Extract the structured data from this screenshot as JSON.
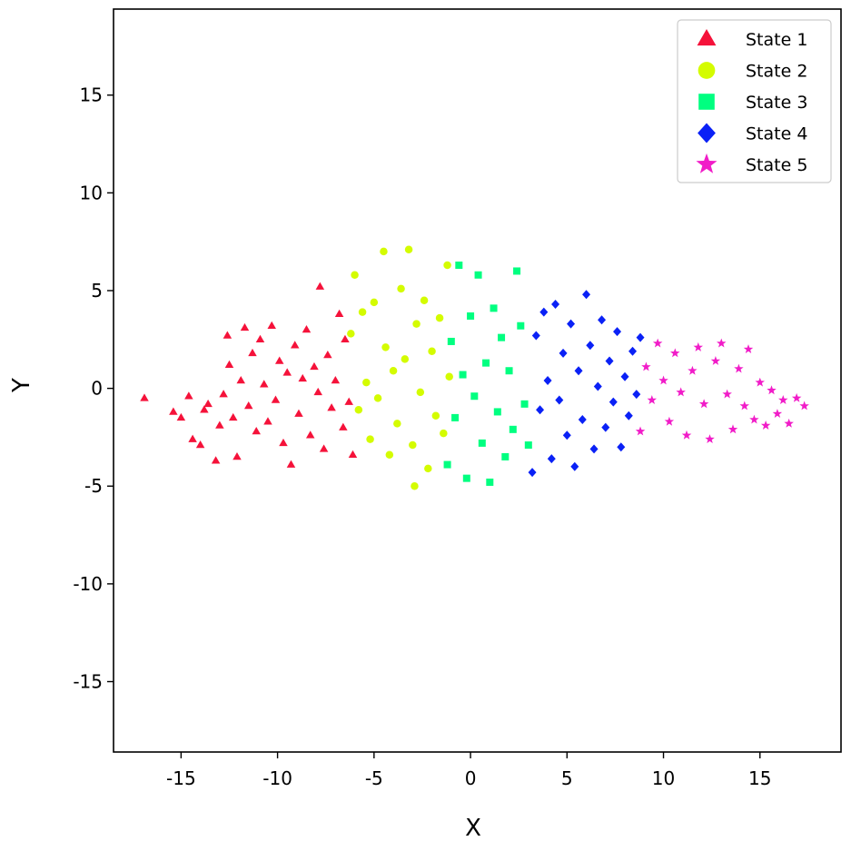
{
  "chart_data": {
    "type": "scatter",
    "xlabel": "X",
    "ylabel": "Y",
    "xlim": [
      -18.5,
      19.2
    ],
    "ylim": [
      -18.6,
      19.4
    ],
    "xticks": [
      -15,
      -10,
      -5,
      0,
      5,
      10,
      15
    ],
    "yticks": [
      -15,
      -10,
      -5,
      0,
      5,
      10,
      15
    ],
    "xtick_labels": [
      "-15",
      "-10",
      "-5",
      "0",
      "5",
      "10",
      "15"
    ],
    "ytick_labels": [
      "-15",
      "-10",
      "-5",
      "0",
      "5",
      "10",
      "15"
    ],
    "grid": false,
    "legend_position": "top-right",
    "series": [
      {
        "name": "State 1",
        "marker": "triangle",
        "color": "#f5123a",
        "points": [
          [
            -16.9,
            -0.5
          ],
          [
            -15.4,
            -1.2
          ],
          [
            -15.0,
            -1.5
          ],
          [
            -14.6,
            -0.4
          ],
          [
            -14.4,
            -2.6
          ],
          [
            -14.0,
            -2.9
          ],
          [
            -13.8,
            -1.1
          ],
          [
            -13.6,
            -0.8
          ],
          [
            -13.2,
            -3.7
          ],
          [
            -13.0,
            -1.9
          ],
          [
            -12.8,
            -0.3
          ],
          [
            -12.6,
            2.7
          ],
          [
            -12.5,
            1.2
          ],
          [
            -12.3,
            -1.5
          ],
          [
            -12.1,
            -3.5
          ],
          [
            -11.9,
            0.4
          ],
          [
            -11.7,
            3.1
          ],
          [
            -11.5,
            -0.9
          ],
          [
            -11.3,
            1.8
          ],
          [
            -11.1,
            -2.2
          ],
          [
            -10.9,
            2.5
          ],
          [
            -10.7,
            0.2
          ],
          [
            -10.5,
            -1.7
          ],
          [
            -10.3,
            3.2
          ],
          [
            -10.1,
            -0.6
          ],
          [
            -9.9,
            1.4
          ],
          [
            -9.7,
            -2.8
          ],
          [
            -9.5,
            0.8
          ],
          [
            -9.3,
            -3.9
          ],
          [
            -9.1,
            2.2
          ],
          [
            -8.9,
            -1.3
          ],
          [
            -8.7,
            0.5
          ],
          [
            -8.5,
            3.0
          ],
          [
            -8.3,
            -2.4
          ],
          [
            -8.1,
            1.1
          ],
          [
            -7.9,
            -0.2
          ],
          [
            -7.8,
            5.2
          ],
          [
            -7.6,
            -3.1
          ],
          [
            -7.4,
            1.7
          ],
          [
            -7.2,
            -1.0
          ],
          [
            -7.0,
            0.4
          ],
          [
            -6.8,
            3.8
          ],
          [
            -6.6,
            -2.0
          ],
          [
            -6.5,
            2.5
          ],
          [
            -6.3,
            -0.7
          ],
          [
            -6.1,
            -3.4
          ]
        ]
      },
      {
        "name": "State 2",
        "marker": "circle",
        "color": "#d4fc00",
        "points": [
          [
            -6.2,
            2.8
          ],
          [
            -6.0,
            5.8
          ],
          [
            -5.8,
            -1.1
          ],
          [
            -5.6,
            3.9
          ],
          [
            -5.4,
            0.3
          ],
          [
            -5.2,
            -2.6
          ],
          [
            -5.0,
            4.4
          ],
          [
            -4.8,
            -0.5
          ],
          [
            -4.5,
            7.0
          ],
          [
            -4.4,
            2.1
          ],
          [
            -4.2,
            -3.4
          ],
          [
            -4.0,
            0.9
          ],
          [
            -3.8,
            -1.8
          ],
          [
            -3.6,
            5.1
          ],
          [
            -3.4,
            1.5
          ],
          [
            -3.2,
            7.1
          ],
          [
            -3.0,
            -2.9
          ],
          [
            -2.9,
            -5.0
          ],
          [
            -2.8,
            3.3
          ],
          [
            -2.6,
            -0.2
          ],
          [
            -2.4,
            4.5
          ],
          [
            -2.2,
            -4.1
          ],
          [
            -2.0,
            1.9
          ],
          [
            -1.8,
            -1.4
          ],
          [
            -1.6,
            3.6
          ],
          [
            -1.4,
            -2.3
          ],
          [
            -1.2,
            6.3
          ],
          [
            -1.1,
            0.6
          ]
        ]
      },
      {
        "name": "State 3",
        "marker": "square",
        "color": "#00ff80",
        "points": [
          [
            -1.2,
            -3.9
          ],
          [
            -1.0,
            2.4
          ],
          [
            -0.8,
            -1.5
          ],
          [
            -0.6,
            6.3
          ],
          [
            -0.4,
            0.7
          ],
          [
            -0.2,
            -4.6
          ],
          [
            0.0,
            3.7
          ],
          [
            0.2,
            -0.4
          ],
          [
            0.4,
            5.8
          ],
          [
            0.6,
            -2.8
          ],
          [
            0.8,
            1.3
          ],
          [
            1.0,
            -4.8
          ],
          [
            1.2,
            4.1
          ],
          [
            1.4,
            -1.2
          ],
          [
            1.6,
            2.6
          ],
          [
            1.8,
            -3.5
          ],
          [
            2.0,
            0.9
          ],
          [
            2.2,
            -2.1
          ],
          [
            2.4,
            6.0
          ],
          [
            2.6,
            3.2
          ],
          [
            2.8,
            -0.8
          ],
          [
            3.0,
            -2.9
          ]
        ]
      },
      {
        "name": "State 4",
        "marker": "diamond",
        "color": "#0a21f6",
        "points": [
          [
            3.2,
            -4.3
          ],
          [
            3.4,
            2.7
          ],
          [
            3.6,
            -1.1
          ],
          [
            3.8,
            3.9
          ],
          [
            4.0,
            0.4
          ],
          [
            4.2,
            -3.6
          ],
          [
            4.4,
            4.3
          ],
          [
            4.6,
            -0.6
          ],
          [
            4.8,
            1.8
          ],
          [
            5.0,
            -2.4
          ],
          [
            5.2,
            3.3
          ],
          [
            5.4,
            -4.0
          ],
          [
            5.6,
            0.9
          ],
          [
            5.8,
            -1.6
          ],
          [
            6.0,
            4.8
          ],
          [
            6.2,
            2.2
          ],
          [
            6.4,
            -3.1
          ],
          [
            6.6,
            0.1
          ],
          [
            6.8,
            3.5
          ],
          [
            7.0,
            -2.0
          ],
          [
            7.2,
            1.4
          ],
          [
            7.4,
            -0.7
          ],
          [
            7.6,
            2.9
          ],
          [
            7.8,
            -3.0
          ],
          [
            8.0,
            0.6
          ],
          [
            8.2,
            -1.4
          ],
          [
            8.4,
            1.9
          ],
          [
            8.6,
            -0.3
          ],
          [
            8.8,
            2.6
          ]
        ]
      },
      {
        "name": "State 5",
        "marker": "star",
        "color": "#f11cc8",
        "points": [
          [
            8.8,
            -2.2
          ],
          [
            9.1,
            1.1
          ],
          [
            9.4,
            -0.6
          ],
          [
            9.7,
            2.3
          ],
          [
            10.0,
            0.4
          ],
          [
            10.3,
            -1.7
          ],
          [
            10.6,
            1.8
          ],
          [
            10.9,
            -0.2
          ],
          [
            11.2,
            -2.4
          ],
          [
            11.5,
            0.9
          ],
          [
            11.8,
            2.1
          ],
          [
            12.1,
            -0.8
          ],
          [
            12.4,
            -2.6
          ],
          [
            12.7,
            1.4
          ],
          [
            13.0,
            2.3
          ],
          [
            13.3,
            -0.3
          ],
          [
            13.6,
            -2.1
          ],
          [
            13.9,
            1.0
          ],
          [
            14.2,
            -0.9
          ],
          [
            14.4,
            2.0
          ],
          [
            14.7,
            -1.6
          ],
          [
            15.0,
            0.3
          ],
          [
            15.3,
            -1.9
          ],
          [
            15.6,
            -0.1
          ],
          [
            15.9,
            -1.3
          ],
          [
            16.2,
            -0.6
          ],
          [
            16.5,
            -1.8
          ],
          [
            16.9,
            -0.5
          ],
          [
            17.3,
            -0.9
          ]
        ]
      }
    ]
  }
}
